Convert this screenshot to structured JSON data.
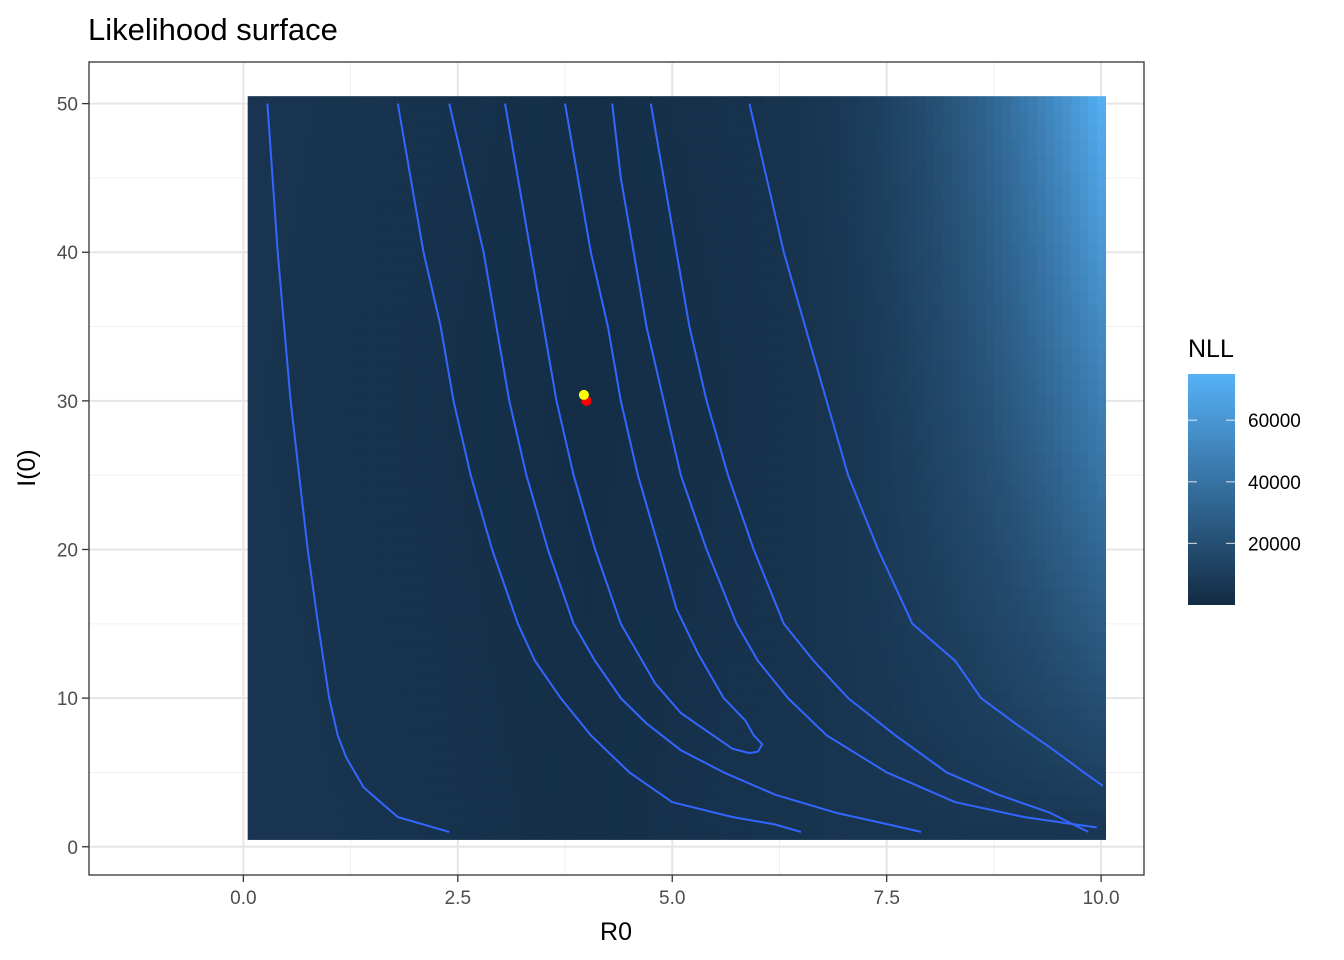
{
  "chart_data": {
    "type": "heatmap",
    "title": "Likelihood surface",
    "xlabel": "R0",
    "ylabel": "I(0)",
    "xlim": [
      -1.8,
      10.5
    ],
    "ylim": [
      -1.9,
      52.8
    ],
    "x_ticks": [
      0.0,
      2.5,
      5.0,
      7.5,
      10.0
    ],
    "x_tick_labels": [
      "0.0",
      "2.5",
      "5.0",
      "7.5",
      "10.0"
    ],
    "y_ticks": [
      0,
      10,
      20,
      30,
      40,
      50
    ],
    "y_tick_labels": [
      "0",
      "10",
      "20",
      "30",
      "40",
      "50"
    ],
    "grid": true,
    "surface": {
      "x_range": [
        0.05,
        10.05
      ],
      "y_range": [
        0.5,
        50.5
      ],
      "low_color": "#132B43",
      "high_color": "#56B1F7",
      "minimum_near": [
        4.0,
        30.0
      ]
    },
    "legend": {
      "title": "NLL",
      "position": "right",
      "range": [
        0,
        75000
      ],
      "ticks": [
        20000,
        40000,
        60000
      ],
      "tick_labels": [
        "20000",
        "40000",
        "60000"
      ]
    },
    "contour_color": "#3366FF",
    "contours": [
      {
        "points": [
          [
            0.28,
            50
          ],
          [
            0.4,
            40
          ],
          [
            0.55,
            30
          ],
          [
            0.75,
            20
          ],
          [
            0.87,
            15
          ],
          [
            1.0,
            10
          ],
          [
            1.1,
            7.5
          ],
          [
            1.2,
            6
          ],
          [
            1.3,
            5
          ],
          [
            1.4,
            4
          ],
          [
            1.6,
            3
          ],
          [
            1.8,
            2
          ],
          [
            2.1,
            1.5
          ],
          [
            2.4,
            1
          ]
        ]
      },
      {
        "points": [
          [
            1.8,
            50
          ],
          [
            1.95,
            45
          ],
          [
            2.1,
            40
          ],
          [
            2.3,
            35
          ],
          [
            2.45,
            30
          ],
          [
            2.65,
            25
          ],
          [
            2.9,
            20
          ],
          [
            3.2,
            15
          ],
          [
            3.4,
            12.5
          ],
          [
            3.7,
            10
          ],
          [
            4.05,
            7.5
          ],
          [
            4.5,
            5
          ],
          [
            5.0,
            3
          ],
          [
            5.7,
            2
          ],
          [
            6.2,
            1.5
          ],
          [
            6.5,
            1
          ]
        ]
      },
      {
        "points": [
          [
            2.4,
            50
          ],
          [
            2.6,
            45
          ],
          [
            2.8,
            40
          ],
          [
            2.95,
            35
          ],
          [
            3.1,
            30
          ],
          [
            3.3,
            25
          ],
          [
            3.55,
            20
          ],
          [
            3.85,
            15
          ],
          [
            4.1,
            12.5
          ],
          [
            4.4,
            10
          ],
          [
            4.7,
            8.3
          ],
          [
            5.1,
            6.5
          ],
          [
            5.6,
            5
          ],
          [
            6.2,
            3.5
          ],
          [
            6.9,
            2.3
          ],
          [
            7.6,
            1.4
          ],
          [
            7.9,
            1
          ]
        ]
      },
      {
        "points": [
          [
            3.05,
            50
          ],
          [
            3.2,
            45
          ],
          [
            3.35,
            40
          ],
          [
            3.5,
            35
          ],
          [
            3.65,
            30
          ],
          [
            3.85,
            25
          ],
          [
            4.1,
            20
          ],
          [
            4.4,
            15
          ],
          [
            4.8,
            11
          ],
          [
            5.1,
            9
          ],
          [
            5.35,
            8.0
          ],
          [
            5.55,
            7.2
          ],
          [
            5.7,
            6.6
          ],
          [
            5.9,
            6.3
          ],
          [
            6.0,
            6.4
          ],
          [
            6.05,
            6.9
          ],
          [
            5.95,
            7.5
          ],
          [
            5.85,
            8.5
          ],
          [
            5.6,
            10
          ],
          [
            5.3,
            13
          ],
          [
            5.05,
            16
          ],
          [
            4.85,
            20
          ],
          [
            4.6,
            25
          ],
          [
            4.4,
            30
          ],
          [
            4.25,
            35
          ],
          [
            4.05,
            40
          ],
          [
            3.9,
            45
          ],
          [
            3.75,
            50
          ]
        ]
      },
      {
        "points": [
          [
            4.3,
            50
          ],
          [
            4.4,
            45
          ],
          [
            4.55,
            40
          ],
          [
            4.7,
            35
          ],
          [
            4.9,
            30
          ],
          [
            5.1,
            25
          ],
          [
            5.4,
            20
          ],
          [
            5.75,
            15
          ],
          [
            6.0,
            12.5
          ],
          [
            6.35,
            10
          ],
          [
            6.8,
            7.5
          ],
          [
            7.5,
            5
          ],
          [
            8.3,
            3
          ],
          [
            9.1,
            2
          ],
          [
            9.7,
            1.5
          ],
          [
            9.95,
            1.3
          ]
        ]
      },
      {
        "points": [
          [
            4.75,
            50
          ],
          [
            4.9,
            45
          ],
          [
            5.05,
            40
          ],
          [
            5.2,
            35
          ],
          [
            5.4,
            30
          ],
          [
            5.65,
            25
          ],
          [
            5.95,
            20
          ],
          [
            6.3,
            15
          ],
          [
            6.65,
            12.5
          ],
          [
            7.05,
            10
          ],
          [
            7.6,
            7.5
          ],
          [
            8.2,
            5
          ],
          [
            8.8,
            3.5
          ],
          [
            9.4,
            2.3
          ],
          [
            9.85,
            1
          ]
        ]
      },
      {
        "points": [
          [
            5.9,
            50
          ],
          [
            6.1,
            45
          ],
          [
            6.3,
            40
          ],
          [
            6.55,
            35
          ],
          [
            6.8,
            30
          ],
          [
            7.05,
            25
          ],
          [
            7.4,
            20
          ],
          [
            7.8,
            15
          ],
          [
            8.3,
            12.5
          ],
          [
            8.6,
            10
          ],
          [
            9.0,
            8.3
          ],
          [
            9.4,
            6.7
          ],
          [
            9.8,
            5.0
          ],
          [
            10.02,
            4.1
          ]
        ]
      }
    ],
    "points": [
      {
        "x": 4.0,
        "y": 30.0,
        "color": "#FF0000"
      },
      {
        "x": 3.97,
        "y": 30.4,
        "color": "#FFFF00"
      }
    ]
  }
}
